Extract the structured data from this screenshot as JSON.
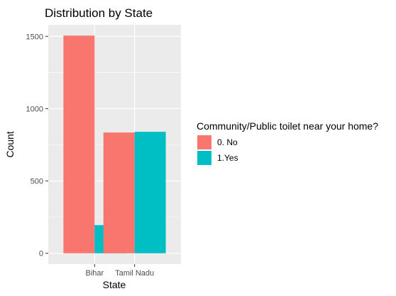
{
  "chart_data": {
    "type": "bar",
    "title": "Distribution by State",
    "xlabel": "State",
    "ylabel": "Count",
    "categories": [
      "Bihar",
      "Tamil Nadu"
    ],
    "series": [
      {
        "name": "0. No",
        "values": [
          1505,
          835
        ],
        "color": "#F8766D"
      },
      {
        "name": "1.Yes",
        "values": [
          195,
          840
        ],
        "color": "#00BFC4"
      }
    ],
    "ylim": [
      -75,
      1580
    ],
    "yticks": [
      0,
      500,
      1000,
      1500
    ],
    "ytick_labels": [
      "0",
      "500",
      "1000",
      "1500"
    ],
    "grid": true,
    "legend": {
      "title": "Community/Public toilet near your home?",
      "placement": "right"
    },
    "panel_color": "#EBEBEB",
    "grid_color": "#FFFFFF"
  }
}
